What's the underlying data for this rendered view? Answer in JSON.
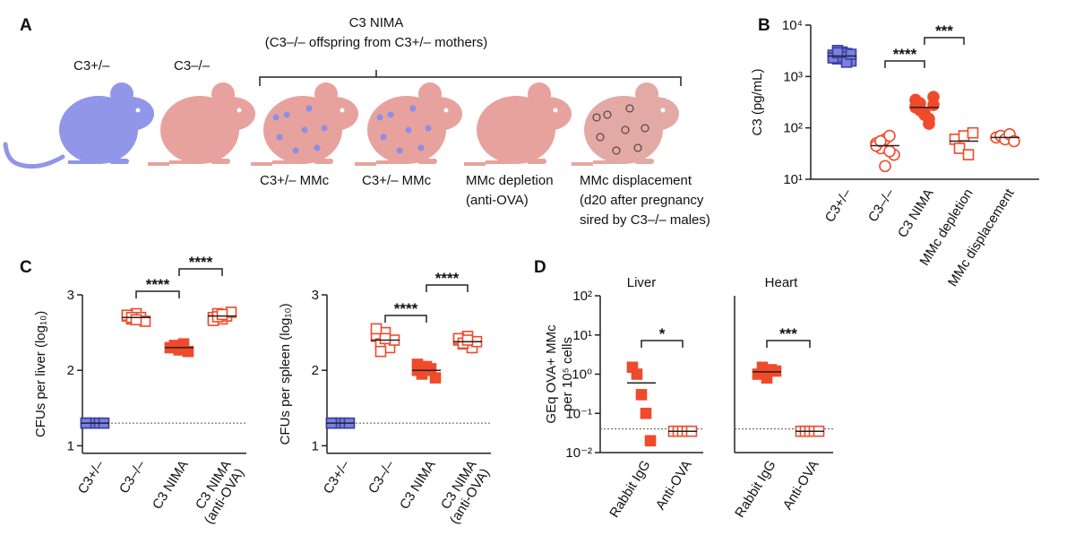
{
  "panel_labels": [
    "A",
    "B",
    "C",
    "D"
  ],
  "panel_a": {
    "group_title": "C3 NIMA",
    "group_subtitle": "(C3–/– offspring from C3+/– mothers)",
    "mouse_labels": [
      "C3+/–",
      "C3–/–"
    ],
    "captions": [
      [
        "C3+/– MMc"
      ],
      [
        "C3+/– MMc"
      ],
      [
        "MMc depletion",
        "(anti-OVA)"
      ],
      [
        "MMc displacement",
        "(d20 after pregnancy",
        "sired by C3–/– males)"
      ]
    ]
  },
  "chart_data": [
    {
      "type": "dotplot",
      "ylabel": [
        "C3 (pg/mL)"
      ],
      "log": true,
      "ylim": [
        10,
        10000
      ],
      "yticks": [
        {
          "value": 10,
          "label": "10¹"
        },
        {
          "value": 100,
          "label": "10²"
        },
        {
          "value": 1000,
          "label": "10³"
        },
        {
          "value": 10000,
          "label": "10⁴"
        }
      ],
      "categories": [
        [
          "C3+/–"
        ],
        [
          "C3–/–"
        ],
        [
          "C3 NIMA"
        ],
        [
          "MMc depletion"
        ],
        [
          "MMc displacement"
        ]
      ],
      "values": [
        [
          2500,
          2200,
          3000,
          2800,
          2000,
          2600,
          3200,
          2400,
          1900,
          2700,
          2300,
          2900
        ],
        [
          50,
          40,
          60,
          70,
          30,
          45,
          55,
          18,
          35
        ],
        [
          250,
          300,
          200,
          150,
          400,
          350,
          220,
          180,
          120,
          280,
          260
        ],
        [
          60,
          40,
          70,
          30,
          80
        ],
        [
          65,
          70,
          60,
          75,
          55
        ]
      ],
      "means": [
        2500,
        45,
        250,
        55,
        65
      ],
      "markers": [
        "square-filled",
        "circle-open",
        "circle-filled",
        "square-open",
        "circle-open"
      ],
      "colors": [
        "#7a80e0",
        "#ef4a2b",
        "#ef4a2b",
        "#ef4a2b",
        "#ef4a2b"
      ],
      "significance": [
        "****",
        "***"
      ]
    },
    {
      "type": "dotplot",
      "ylabel": [
        "CFUs per liver (log₁₀)"
      ],
      "log": false,
      "ylim": [
        0.9,
        3
      ],
      "yticks": [
        1,
        2,
        3
      ],
      "hline": 1.3,
      "categories": [
        [
          "C3+/–"
        ],
        [
          "C3–/–"
        ],
        [
          "C3 NIMA"
        ],
        [
          "C3 NIMA",
          "(anti-OVA)"
        ]
      ],
      "values": [
        [
          1.3,
          1.3,
          1.3,
          1.3,
          1.3,
          1.3
        ],
        [
          2.72,
          2.68,
          2.75,
          2.7,
          2.65,
          2.73,
          2.7,
          2.67
        ],
        [
          2.3,
          2.33,
          2.27,
          2.35,
          2.25,
          2.3,
          2.32,
          2.28
        ],
        [
          2.7,
          2.75,
          2.68,
          2.72,
          2.77,
          2.66,
          2.71,
          2.74
        ]
      ],
      "means": [
        1.3,
        2.7,
        2.3,
        2.72
      ],
      "markers": [
        "square-filled",
        "square-open",
        "square-filled",
        "square-open"
      ],
      "colors": [
        "#7a80e0",
        "#ef4a2b",
        "#ef4a2b",
        "#ef4a2b"
      ],
      "significance": [
        "****",
        "****"
      ]
    },
    {
      "type": "dotplot",
      "ylabel": [
        "CFUs per spleen (log₁₀)"
      ],
      "log": false,
      "ylim": [
        0.9,
        3
      ],
      "yticks": [
        1,
        2,
        3
      ],
      "hline": 1.3,
      "categories": [
        [
          "C3+/–"
        ],
        [
          "C3–/–"
        ],
        [
          "C3 NIMA"
        ],
        [
          "C3 NIMA",
          "(anti-OVA)"
        ]
      ],
      "values": [
        [
          1.3,
          1.3,
          1.3,
          1.3,
          1.3,
          1.3
        ],
        [
          2.45,
          2.35,
          2.5,
          2.3,
          2.4,
          2.55,
          2.25,
          2.42
        ],
        [
          2.0,
          1.95,
          2.05,
          2.02,
          1.9,
          2.08,
          1.98,
          2.0
        ],
        [
          2.4,
          2.35,
          2.45,
          2.3,
          2.38,
          2.42,
          2.36,
          2.4
        ]
      ],
      "means": [
        1.3,
        2.4,
        2.0,
        2.38
      ],
      "markers": [
        "square-filled",
        "square-open",
        "square-filled",
        "square-open"
      ],
      "colors": [
        "#7a80e0",
        "#ef4a2b",
        "#ef4a2b",
        "#ef4a2b"
      ],
      "significance": [
        "****",
        "****"
      ]
    },
    {
      "type": "dotplot",
      "title": "Liver",
      "ylabel": [
        "GEq OVA+ MMc",
        "per 10⁵ cells"
      ],
      "log": true,
      "ylim": [
        0.01,
        100
      ],
      "hline": 0.04,
      "yticks": [
        {
          "value": 0.01,
          "label": "10⁻²"
        },
        {
          "value": 0.1,
          "label": "10⁻¹"
        },
        {
          "value": 1,
          "label": "10⁰"
        },
        {
          "value": 10,
          "label": "10¹"
        },
        {
          "value": 100,
          "label": "10²"
        }
      ],
      "categories": [
        [
          "Rabbit IgG"
        ],
        [
          "Anti-OVA"
        ]
      ],
      "values": [
        [
          1.5,
          1.0,
          0.3,
          0.1,
          0.02
        ],
        [
          0.035,
          0.035,
          0.035,
          0.035,
          0.035
        ]
      ],
      "means": [
        0.6,
        0.035
      ],
      "markers": [
        "square-filled",
        "square-open"
      ],
      "colors": [
        "#ef4a2b",
        "#ef4a2b"
      ],
      "significance": [
        "*"
      ]
    },
    {
      "type": "dotplot",
      "title": "Heart",
      "log": true,
      "ylim": [
        0.01,
        100
      ],
      "hline": 0.04,
      "categories": [
        [
          "Rabbit IgG"
        ],
        [
          "Anti-OVA"
        ]
      ],
      "values": [
        [
          1.0,
          1.5,
          0.8,
          1.3,
          1.2
        ],
        [
          0.035,
          0.035,
          0.035,
          0.035,
          0.035
        ]
      ],
      "means": [
        1.15,
        0.035
      ],
      "markers": [
        "square-filled",
        "square-open"
      ],
      "colors": [
        "#ef4a2b",
        "#ef4a2b"
      ],
      "significance": [
        "***"
      ]
    }
  ]
}
